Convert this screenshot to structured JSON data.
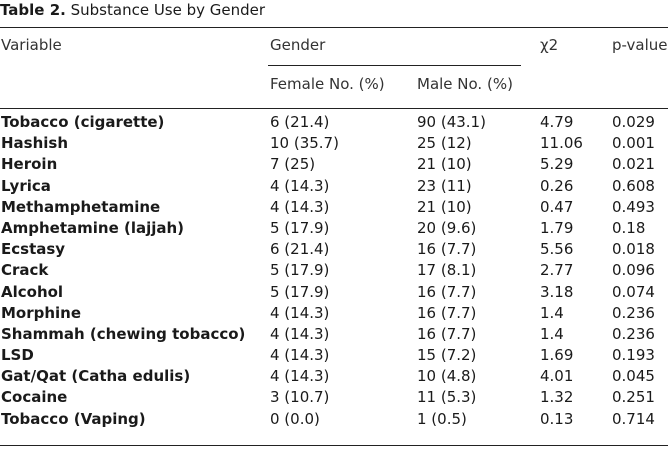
{
  "caption": {
    "label": "Table 2.",
    "title": "Substance Use by Gender"
  },
  "header": {
    "variable": "Variable",
    "gender": "Gender",
    "female": "Female No. (%)",
    "male": "Male No. (%)",
    "chi2": "χ2",
    "pvalue": "p-value"
  },
  "rows": [
    {
      "variable": "Tobacco (cigarette)",
      "female": "6 (21.4)",
      "male": "90 (43.1)",
      "chi2": "4.79",
      "p": "0.029"
    },
    {
      "variable": "Hashish",
      "female": "10 (35.7)",
      "male": "25 (12)",
      "chi2": "11.06",
      "p": "0.001"
    },
    {
      "variable": "Heroin",
      "female": "7 (25)",
      "male": "21 (10)",
      "chi2": "5.29",
      "p": "0.021"
    },
    {
      "variable": "Lyrica",
      "female": "4 (14.3)",
      "male": "23 (11)",
      "chi2": "0.26",
      "p": "0.608"
    },
    {
      "variable": "Methamphetamine",
      "female": "4 (14.3)",
      "male": "21 (10)",
      "chi2": "0.47",
      "p": "0.493"
    },
    {
      "variable": "Amphetamine (lajjah)",
      "female": "5 (17.9)",
      "male": "20 (9.6)",
      "chi2": "1.79",
      "p": "0.18"
    },
    {
      "variable": "Ecstasy",
      "female": "6 (21.4)",
      "male": "16 (7.7)",
      "chi2": "5.56",
      "p": "0.018"
    },
    {
      "variable": "Crack",
      "female": "5 (17.9)",
      "male": "17 (8.1)",
      "chi2": "2.77",
      "p": "0.096"
    },
    {
      "variable": "Alcohol",
      "female": "5 (17.9)",
      "male": "16 (7.7)",
      "chi2": "3.18",
      "p": "0.074"
    },
    {
      "variable": "Morphine",
      "female": "4 (14.3)",
      "male": "16 (7.7)",
      "chi2": "1.4",
      "p": "0.236"
    },
    {
      "variable": "Shammah (chewing tobacco)",
      "female": "4 (14.3)",
      "male": "16 (7.7)",
      "chi2": "1.4",
      "p": "0.236"
    },
    {
      "variable": "LSD",
      "female": "4 (14.3)",
      "male": "15 (7.2)",
      "chi2": "1.69",
      "p": "0.193"
    },
    {
      "variable": "Gat/Qat (Catha edulis)",
      "female": "4 (14.3)",
      "male": "10 (4.8)",
      "chi2": "4.01",
      "p": "0.045"
    },
    {
      "variable": "Cocaine",
      "female": "3 (10.7)",
      "male": "11 (5.3)",
      "chi2": "1.32",
      "p": "0.251"
    },
    {
      "variable": "Tobacco (Vaping)",
      "female": "0 (0.0)",
      "male": "1 (0.5)",
      "chi2": "0.13",
      "p": "0.714"
    }
  ]
}
